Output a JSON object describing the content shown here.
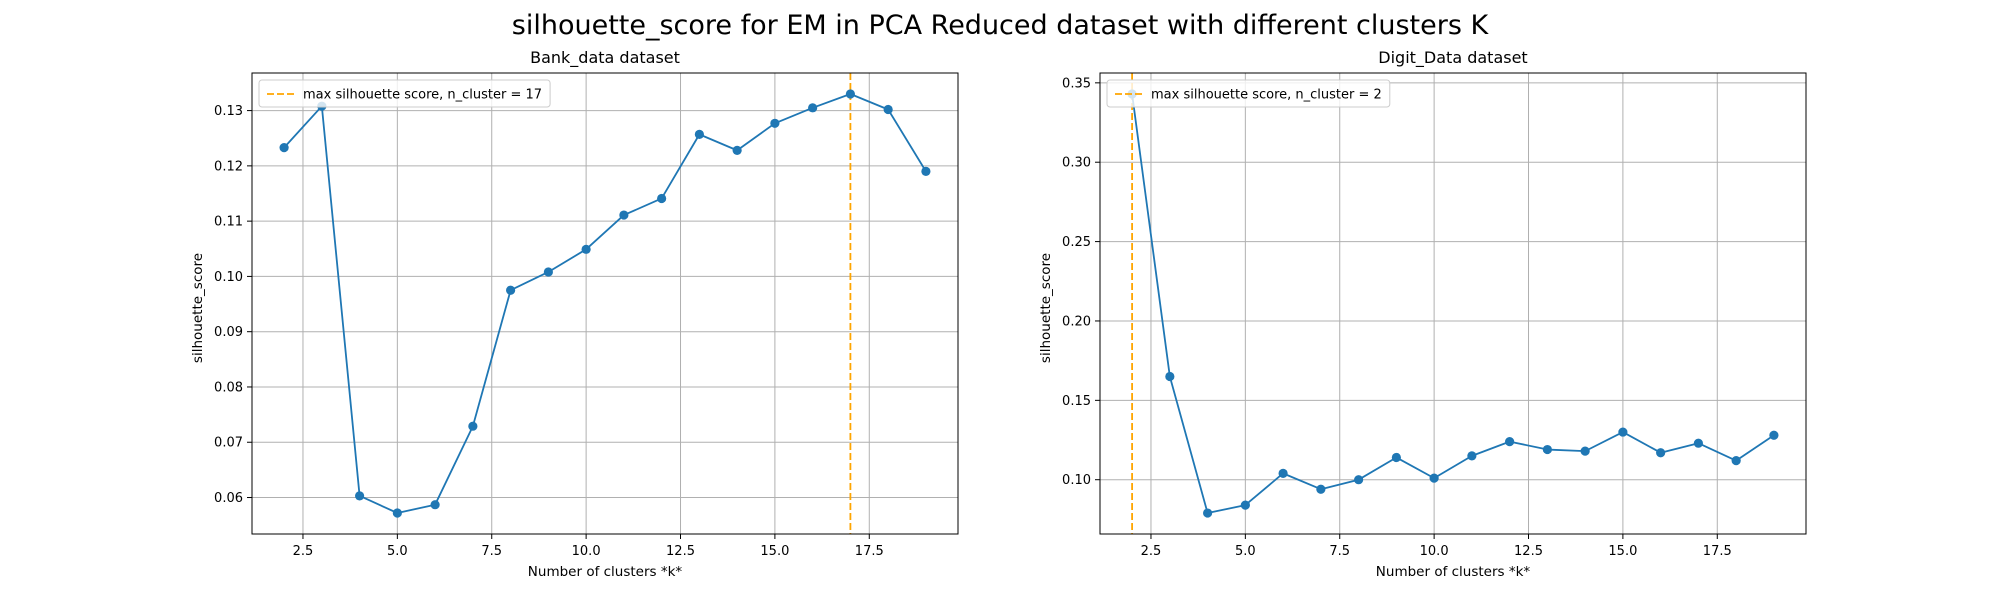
{
  "suptitle": "silhouette_score for EM in PCA Reduced dataset with different clusters K",
  "chart_data": [
    {
      "type": "line",
      "title": "Bank_data dataset",
      "xlabel": "Number of clusters *k*",
      "ylabel": "silhouette_score",
      "x": [
        2,
        3,
        4,
        5,
        6,
        7,
        8,
        9,
        10,
        11,
        12,
        13,
        14,
        15,
        16,
        17,
        18,
        19
      ],
      "series": [
        {
          "values": [
            0.1233,
            0.1308,
            0.0603,
            0.0572,
            0.0587,
            0.0729,
            0.0975,
            0.1008,
            0.1049,
            0.1111,
            0.1141,
            0.1257,
            0.1228,
            0.1277,
            0.1305,
            0.133,
            0.1302,
            0.119
          ],
          "color": "#1f77b4",
          "marker": "circle"
        }
      ],
      "vline": {
        "x": 17,
        "color": "#ffa500",
        "style": "dashed",
        "label": "max silhouette score, n_cluster = 17"
      },
      "xlim": [
        1.15,
        19.85
      ],
      "ylim": [
        0.0534,
        0.1368
      ],
      "xticks": [
        2.5,
        5.0,
        7.5,
        10.0,
        12.5,
        15.0,
        17.5
      ],
      "xtick_labels": [
        "2.5",
        "5.0",
        "7.5",
        "10.0",
        "12.5",
        "15.0",
        "17.5"
      ],
      "yticks": [
        0.06,
        0.07,
        0.08,
        0.09,
        0.1,
        0.11,
        0.12,
        0.13
      ],
      "ytick_labels": [
        "0.06",
        "0.07",
        "0.08",
        "0.09",
        "0.10",
        "0.11",
        "0.12",
        "0.13"
      ],
      "grid": true,
      "legend": "upper-left"
    },
    {
      "type": "line",
      "title": "Digit_Data dataset",
      "xlabel": "Number of clusters *k*",
      "ylabel": "silhouette_score",
      "x": [
        2,
        3,
        4,
        5,
        6,
        7,
        8,
        9,
        10,
        11,
        12,
        13,
        14,
        15,
        16,
        17,
        18,
        19
      ],
      "series": [
        {
          "values": [
            0.343,
            0.165,
            0.079,
            0.084,
            0.104,
            0.094,
            0.1,
            0.114,
            0.101,
            0.115,
            0.124,
            0.119,
            0.118,
            0.13,
            0.117,
            0.123,
            0.112,
            0.128
          ],
          "color": "#1f77b4",
          "marker": "circle"
        }
      ],
      "vline": {
        "x": 2,
        "color": "#ffa500",
        "style": "dashed",
        "label": "max silhouette score, n_cluster = 2"
      },
      "xlim": [
        1.15,
        19.85
      ],
      "ylim": [
        0.0658,
        0.3562
      ],
      "xticks": [
        2.5,
        5.0,
        7.5,
        10.0,
        12.5,
        15.0,
        17.5
      ],
      "xtick_labels": [
        "2.5",
        "5.0",
        "7.5",
        "10.0",
        "12.5",
        "15.0",
        "17.5"
      ],
      "yticks": [
        0.1,
        0.15,
        0.2,
        0.25,
        0.3,
        0.35
      ],
      "ytick_labels": [
        "0.10",
        "0.15",
        "0.20",
        "0.25",
        "0.30",
        "0.35"
      ],
      "grid": true,
      "legend": "upper-left"
    }
  ]
}
